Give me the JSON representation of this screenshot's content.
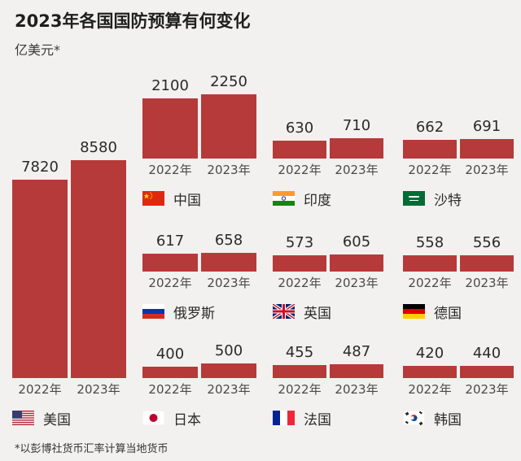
{
  "title": "2023年各国国防预算有何变化",
  "unit": "亿美元*",
  "footnote": "*以彭博社货币汇率计算当地货币",
  "chart_data": {
    "type": "bar",
    "title": "2023年各国国防预算有何变化",
    "ylabel": "亿美元*",
    "categories": [
      "2022年",
      "2023年"
    ],
    "bar_color": "#b73a3a",
    "countries": [
      {
        "name": "美国",
        "flag": "us-flag-icon",
        "values": [
          7820,
          8580
        ]
      },
      {
        "name": "中国",
        "flag": "china-flag-icon",
        "values": [
          2100,
          2250
        ]
      },
      {
        "name": "印度",
        "flag": "india-flag-icon",
        "values": [
          630,
          710
        ]
      },
      {
        "name": "沙特",
        "flag": "saudi-flag-icon",
        "values": [
          662,
          691
        ]
      },
      {
        "name": "俄罗斯",
        "flag": "russia-flag-icon",
        "values": [
          617,
          658
        ]
      },
      {
        "name": "英国",
        "flag": "uk-flag-icon",
        "values": [
          573,
          605
        ]
      },
      {
        "name": "德国",
        "flag": "germany-flag-icon",
        "values": [
          558,
          556
        ]
      },
      {
        "name": "日本",
        "flag": "japan-flag-icon",
        "values": [
          400,
          500
        ]
      },
      {
        "name": "法国",
        "flag": "france-flag-icon",
        "values": [
          455,
          487
        ]
      },
      {
        "name": "韩国",
        "flag": "korea-flag-icon",
        "values": [
          420,
          440
        ]
      }
    ]
  }
}
